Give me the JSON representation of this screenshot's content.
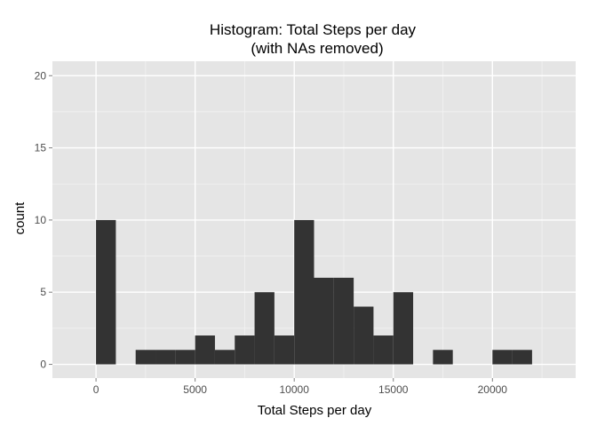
{
  "chart_data": {
    "type": "bar",
    "title": "Histogram: Total Steps per day",
    "subtitle": "(with NAs removed)",
    "xlabel": "Total Steps per day",
    "ylabel": "count",
    "xlim": [
      -2200,
      24200
    ],
    "ylim": [
      -0.95,
      21
    ],
    "binwidth": 1000,
    "x_ticks": [
      0,
      5000,
      10000,
      15000,
      20000
    ],
    "y_ticks": [
      0,
      5,
      10,
      15,
      20
    ],
    "grid": true,
    "bins": [
      {
        "start": 0,
        "end": 1000,
        "count": 10
      },
      {
        "start": 1000,
        "end": 2000,
        "count": 0
      },
      {
        "start": 2000,
        "end": 3000,
        "count": 1
      },
      {
        "start": 3000,
        "end": 4000,
        "count": 1
      },
      {
        "start": 4000,
        "end": 5000,
        "count": 1
      },
      {
        "start": 5000,
        "end": 6000,
        "count": 2
      },
      {
        "start": 6000,
        "end": 7000,
        "count": 1
      },
      {
        "start": 7000,
        "end": 8000,
        "count": 2
      },
      {
        "start": 8000,
        "end": 9000,
        "count": 5
      },
      {
        "start": 9000,
        "end": 10000,
        "count": 2
      },
      {
        "start": 10000,
        "end": 11000,
        "count": 10
      },
      {
        "start": 11000,
        "end": 12000,
        "count": 6
      },
      {
        "start": 12000,
        "end": 13000,
        "count": 6
      },
      {
        "start": 13000,
        "end": 14000,
        "count": 4
      },
      {
        "start": 14000,
        "end": 15000,
        "count": 2
      },
      {
        "start": 15000,
        "end": 16000,
        "count": 5
      },
      {
        "start": 16000,
        "end": 17000,
        "count": 0
      },
      {
        "start": 17000,
        "end": 18000,
        "count": 1
      },
      {
        "start": 18000,
        "end": 19000,
        "count": 0
      },
      {
        "start": 19000,
        "end": 20000,
        "count": 0
      },
      {
        "start": 20000,
        "end": 21000,
        "count": 1
      },
      {
        "start": 21000,
        "end": 22000,
        "count": 1
      }
    ],
    "colors": {
      "panel_background": "#e5e5e5",
      "grid_major": "#ffffff",
      "grid_minor": "#f2f2f2",
      "bar_fill": "#333333",
      "tick_label": "#4d4d4d"
    }
  }
}
